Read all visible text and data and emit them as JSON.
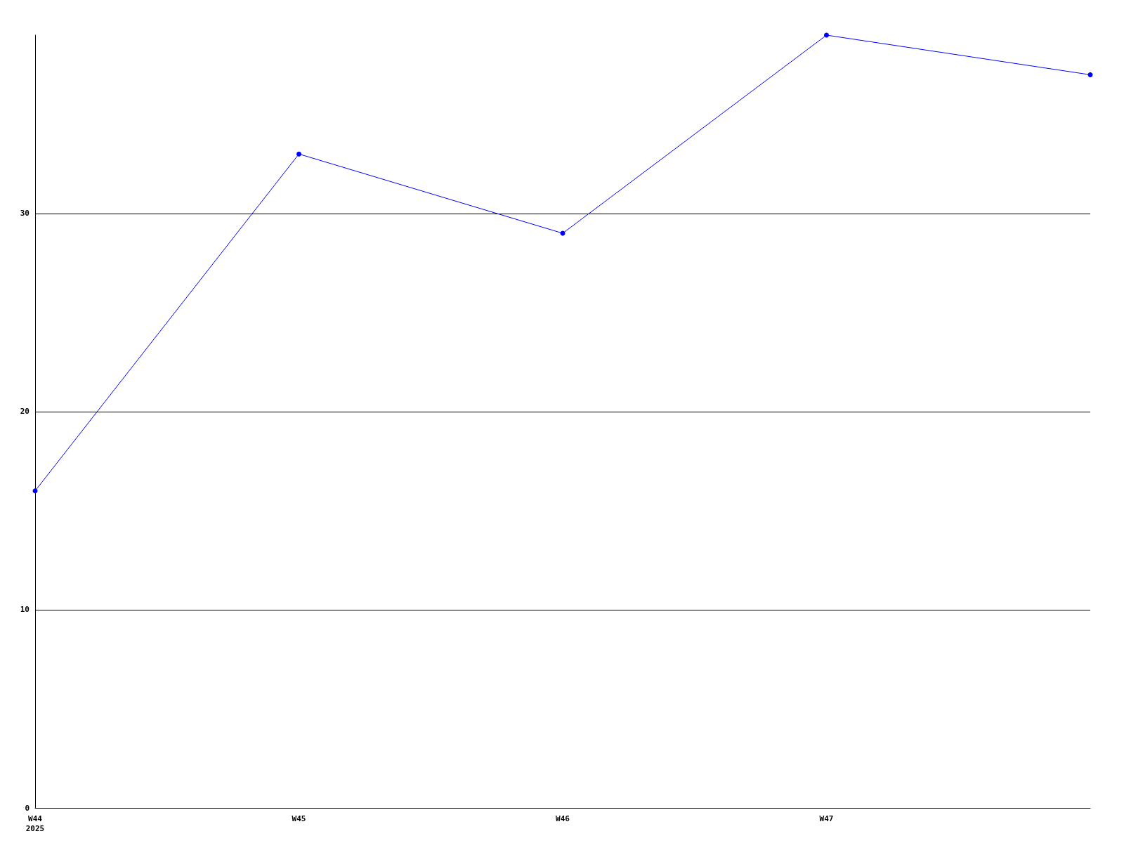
{
  "chart_data": {
    "type": "line",
    "categories": [
      "W44\n2025",
      "W45",
      "W46",
      "W47",
      null
    ],
    "series": [
      {
        "color": "#0000ff",
        "values": [
          16,
          33,
          29,
          39,
          37
        ]
      }
    ],
    "ylim": [
      0,
      39
    ],
    "yticks": [
      0,
      10,
      20,
      30
    ],
    "grid": "y",
    "marker": "circle",
    "line_style": "solid"
  }
}
